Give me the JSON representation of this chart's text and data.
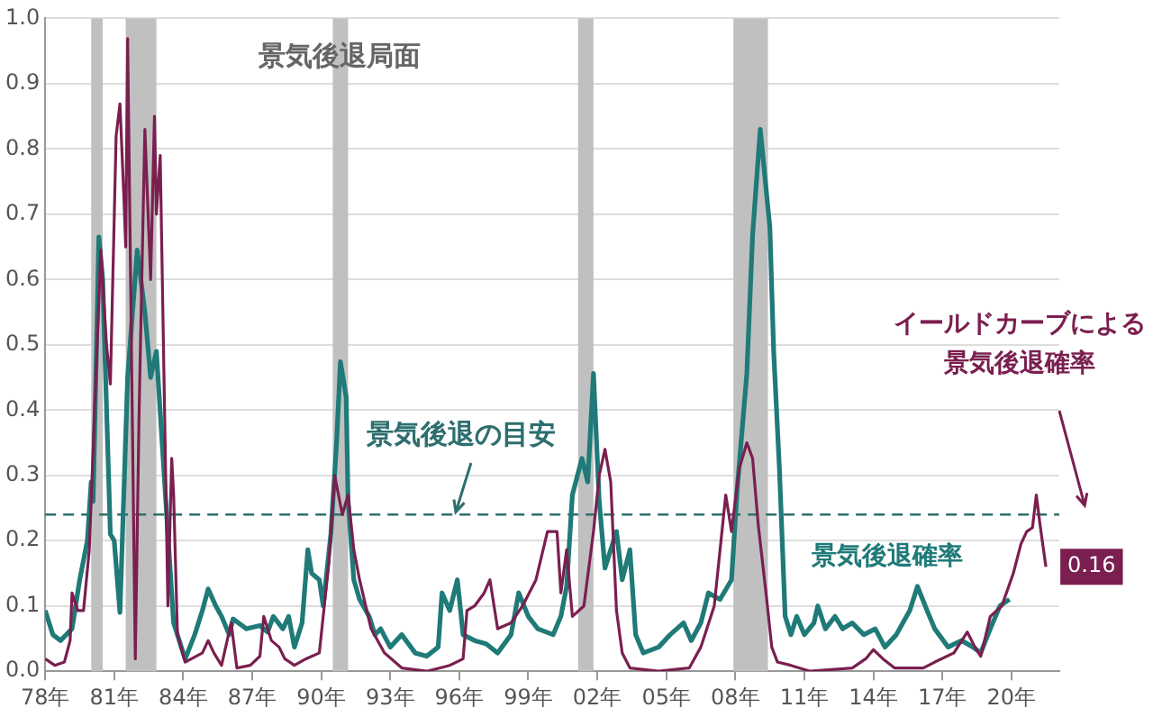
{
  "chart_data": {
    "type": "line",
    "xlim": [
      "1978-01",
      "2022-02"
    ],
    "xticks": [
      {
        "value": "1978",
        "label": "78年"
      },
      {
        "value": "1981",
        "label": "81年"
      },
      {
        "value": "1984",
        "label": "84年"
      },
      {
        "value": "1987",
        "label": "87年"
      },
      {
        "value": "1990",
        "label": "90年"
      },
      {
        "value": "1993",
        "label": "93年"
      },
      {
        "value": "1996",
        "label": "96年"
      },
      {
        "value": "1999",
        "label": "99年"
      },
      {
        "value": "2002",
        "label": "02年"
      },
      {
        "value": "2005",
        "label": "05年"
      },
      {
        "value": "2008",
        "label": "08年"
      },
      {
        "value": "2011",
        "label": "11年"
      },
      {
        "value": "2014",
        "label": "14年"
      },
      {
        "value": "2017",
        "label": "17年"
      },
      {
        "value": "2020",
        "label": "20年"
      }
    ],
    "ylim": [
      0,
      1
    ],
    "yticks": [
      {
        "value": 0,
        "label": "0.0"
      },
      0.1,
      0.2,
      0.3,
      0.4,
      0.5,
      0.6,
      0.7,
      0.8,
      0.9,
      {
        "value": 1,
        "label": "1.0"
      }
    ],
    "grid": "y",
    "legend": false,
    "marker": "none",
    "series": [
      {
        "name": "景気後退確率",
        "color": "#1f7a78",
        "x": [
          "1978-01",
          "1978-05",
          "1978-09",
          "1979-03",
          "1979-07",
          "1979-11",
          "1980-01",
          "1980-02",
          "1980-05",
          "1980-07",
          "1980-08",
          "1980-11",
          "1981-01",
          "1981-04",
          "1981-08",
          "1982-01",
          "1982-05",
          "1982-08",
          "1982-11",
          "1983-02",
          "1983-05",
          "1983-08",
          "1983-12",
          "1984-02",
          "1984-07",
          "1984-11",
          "1985-02",
          "1985-06",
          "1985-09",
          "1986-01",
          "1986-03",
          "1986-10",
          "1987-05",
          "1987-09",
          "1987-12",
          "1988-05",
          "1988-08",
          "1988-11",
          "1989-03",
          "1989-06",
          "1989-08",
          "1989-12",
          "1990-02",
          "1990-06",
          "1990-09",
          "1990-11",
          "1991-02",
          "1991-03",
          "1991-06",
          "1991-09",
          "1992-02",
          "1992-05",
          "1992-08",
          "1993-01",
          "1993-07",
          "1994-02",
          "1994-08",
          "1995-02",
          "1995-04",
          "1995-08",
          "1995-12",
          "1996-03",
          "1996-09",
          "1997-03",
          "1997-09",
          "1998-04",
          "1998-08",
          "1999-01",
          "1999-06",
          "2000-02",
          "2000-06",
          "2000-09",
          "2000-12",
          "2001-05",
          "2001-08",
          "2001-11",
          "2002-02",
          "2002-05",
          "2002-08",
          "2002-11",
          "2003-02",
          "2003-06",
          "2003-09",
          "2004-01",
          "2004-09",
          "2005-03",
          "2005-10",
          "2006-02",
          "2006-07",
          "2006-11",
          "2007-05",
          "2007-11",
          "2008-02",
          "2008-07",
          "2008-10",
          "2009-02",
          "2009-07",
          "2009-09",
          "2009-12",
          "2010-03",
          "2010-06",
          "2010-09",
          "2011-01",
          "2011-06",
          "2011-08",
          "2011-12",
          "2012-05",
          "2012-09",
          "2013-02",
          "2013-08",
          "2014-02",
          "2014-07",
          "2015-01",
          "2015-08",
          "2015-12",
          "2016-05",
          "2016-09",
          "2017-04",
          "2017-11",
          "2018-05",
          "2018-09",
          "2019-02",
          "2019-07",
          "2019-12"
        ],
        "values": [
          0.093,
          0.056,
          0.047,
          0.065,
          0.14,
          0.2,
          0.29,
          0.26,
          0.665,
          0.6,
          0.5,
          0.21,
          0.2,
          0.09,
          0.45,
          0.645,
          0.55,
          0.45,
          0.49,
          0.35,
          0.21,
          0.074,
          0.037,
          0.019,
          0.056,
          0.093,
          0.126,
          0.1,
          0.084,
          0.056,
          0.08,
          0.065,
          0.07,
          0.06,
          0.084,
          0.065,
          0.084,
          0.037,
          0.074,
          0.186,
          0.15,
          0.14,
          0.1,
          0.21,
          0.35,
          0.474,
          0.42,
          0.26,
          0.14,
          0.11,
          0.084,
          0.056,
          0.065,
          0.037,
          0.056,
          0.028,
          0.023,
          0.037,
          0.12,
          0.093,
          0.14,
          0.056,
          0.047,
          0.042,
          0.028,
          0.056,
          0.12,
          0.084,
          0.065,
          0.056,
          0.084,
          0.13,
          0.27,
          0.326,
          0.29,
          0.456,
          0.26,
          0.158,
          0.186,
          0.214,
          0.14,
          0.186,
          0.056,
          0.028,
          0.037,
          0.056,
          0.074,
          0.047,
          0.074,
          0.12,
          0.11,
          0.14,
          0.28,
          0.456,
          0.668,
          0.83,
          0.68,
          0.49,
          0.31,
          0.084,
          0.056,
          0.084,
          0.056,
          0.074,
          0.1,
          0.065,
          0.084,
          0.065,
          0.074,
          0.056,
          0.065,
          0.037,
          0.056,
          0.093,
          0.13,
          0.093,
          0.065,
          0.037,
          0.047,
          0.037,
          0.028,
          0.065,
          0.1,
          0.11
        ]
      },
      {
        "name": "イールドカーブによる景気後退確率",
        "color": "#7a1f4f",
        "x": [
          "1978-01",
          "1978-06",
          "1978-11",
          "1979-02",
          "1979-03",
          "1979-06",
          "1979-09",
          "1979-12",
          "1980-06",
          "1980-09",
          "1980-11",
          "1981-02",
          "1981-04",
          "1981-06",
          "1981-07",
          "1981-08",
          "1981-12",
          "1982-02",
          "1982-05",
          "1982-08",
          "1982-10",
          "1982-11",
          "1983-01",
          "1983-05",
          "1983-07",
          "1983-08",
          "1983-10",
          "1984-02",
          "1984-11",
          "1985-02",
          "1985-05",
          "1985-09",
          "1986-02",
          "1986-05",
          "1986-12",
          "1987-05",
          "1987-07",
          "1987-11",
          "1988-03",
          "1988-06",
          "1988-11",
          "1989-05",
          "1989-12",
          "1990-05",
          "1990-08",
          "1990-12",
          "1991-03",
          "1991-06",
          "1991-09",
          "1992-03",
          "1992-10",
          "1993-07",
          "1994-08",
          "1995-08",
          "1996-03",
          "1996-05",
          "1996-09",
          "1997-02",
          "1997-05",
          "1997-09",
          "1998-04",
          "1998-10",
          "1999-05",
          "1999-08",
          "1999-11",
          "2000-04",
          "2000-06",
          "2000-09",
          "2000-12",
          "2001-06",
          "2001-11",
          "2002-02",
          "2002-05",
          "2002-08",
          "2002-11",
          "2003-02",
          "2003-06",
          "2004-09",
          "2006-01",
          "2006-07",
          "2007-02",
          "2007-08",
          "2007-11",
          "2008-03",
          "2008-07",
          "2008-10",
          "2009-01",
          "2009-05",
          "2009-08",
          "2009-11",
          "2010-06",
          "2011-04",
          "2013-02",
          "2013-09",
          "2014-01",
          "2014-06",
          "2014-12",
          "2016-03",
          "2016-09",
          "2017-07",
          "2018-02",
          "2018-06",
          "2018-09",
          "2019-02",
          "2019-08",
          "2020-02",
          "2020-06",
          "2020-09",
          "2020-12",
          "2021-02",
          "2021-04",
          "2021-07"
        ],
        "values": [
          0.019,
          0.009,
          0.014,
          0.047,
          0.12,
          0.093,
          0.093,
          0.186,
          0.645,
          0.5,
          0.44,
          0.82,
          0.869,
          0.73,
          0.65,
          0.969,
          0.019,
          0.4,
          0.83,
          0.6,
          0.85,
          0.7,
          0.79,
          0.1,
          0.326,
          0.27,
          0.056,
          0.014,
          0.028,
          0.047,
          0.028,
          0.009,
          0.074,
          0.005,
          0.009,
          0.023,
          0.084,
          0.047,
          0.037,
          0.019,
          0.009,
          0.019,
          0.028,
          0.167,
          0.3,
          0.24,
          0.27,
          0.186,
          0.14,
          0.065,
          0.028,
          0.005,
          0.0,
          0.009,
          0.019,
          0.093,
          0.1,
          0.12,
          0.14,
          0.065,
          0.074,
          0.1,
          0.14,
          0.177,
          0.214,
          0.214,
          0.12,
          0.186,
          0.084,
          0.1,
          0.214,
          0.3,
          0.34,
          0.29,
          0.093,
          0.028,
          0.005,
          0.0,
          0.005,
          0.037,
          0.1,
          0.27,
          0.214,
          0.31,
          0.35,
          0.326,
          0.223,
          0.12,
          0.037,
          0.014,
          0.009,
          0.0,
          0.005,
          0.019,
          0.033,
          0.019,
          0.005,
          0.005,
          0.014,
          0.028,
          0.06,
          0.037,
          0.023,
          0.084,
          0.1,
          0.15,
          0.195,
          0.214,
          0.22,
          0.27,
          0.223,
          0.16
        ]
      }
    ],
    "bands": [
      {
        "axis": "x",
        "from": "1980-01",
        "to": "1980-07",
        "color": "#c0c0c0"
      },
      {
        "axis": "x",
        "from": "1981-07",
        "to": "1982-11",
        "color": "#c0c0c0"
      },
      {
        "axis": "x",
        "from": "1990-07",
        "to": "1991-03",
        "color": "#c0c0c0"
      },
      {
        "axis": "x",
        "from": "2001-03",
        "to": "2001-11",
        "color": "#c0c0c0"
      },
      {
        "axis": "x",
        "from": "2007-12",
        "to": "2009-06",
        "color": "#c0c0c0"
      }
    ],
    "ref_lines": [
      {
        "axis": "y",
        "value": 0.24,
        "color": "#2e6e6e",
        "line_style": "dashed"
      }
    ],
    "annotations": [
      "景気後退局面",
      "景気後退の目安",
      {
        "text": "0.16",
        "x": "2021-07",
        "y": 0.16
      }
    ]
  }
}
